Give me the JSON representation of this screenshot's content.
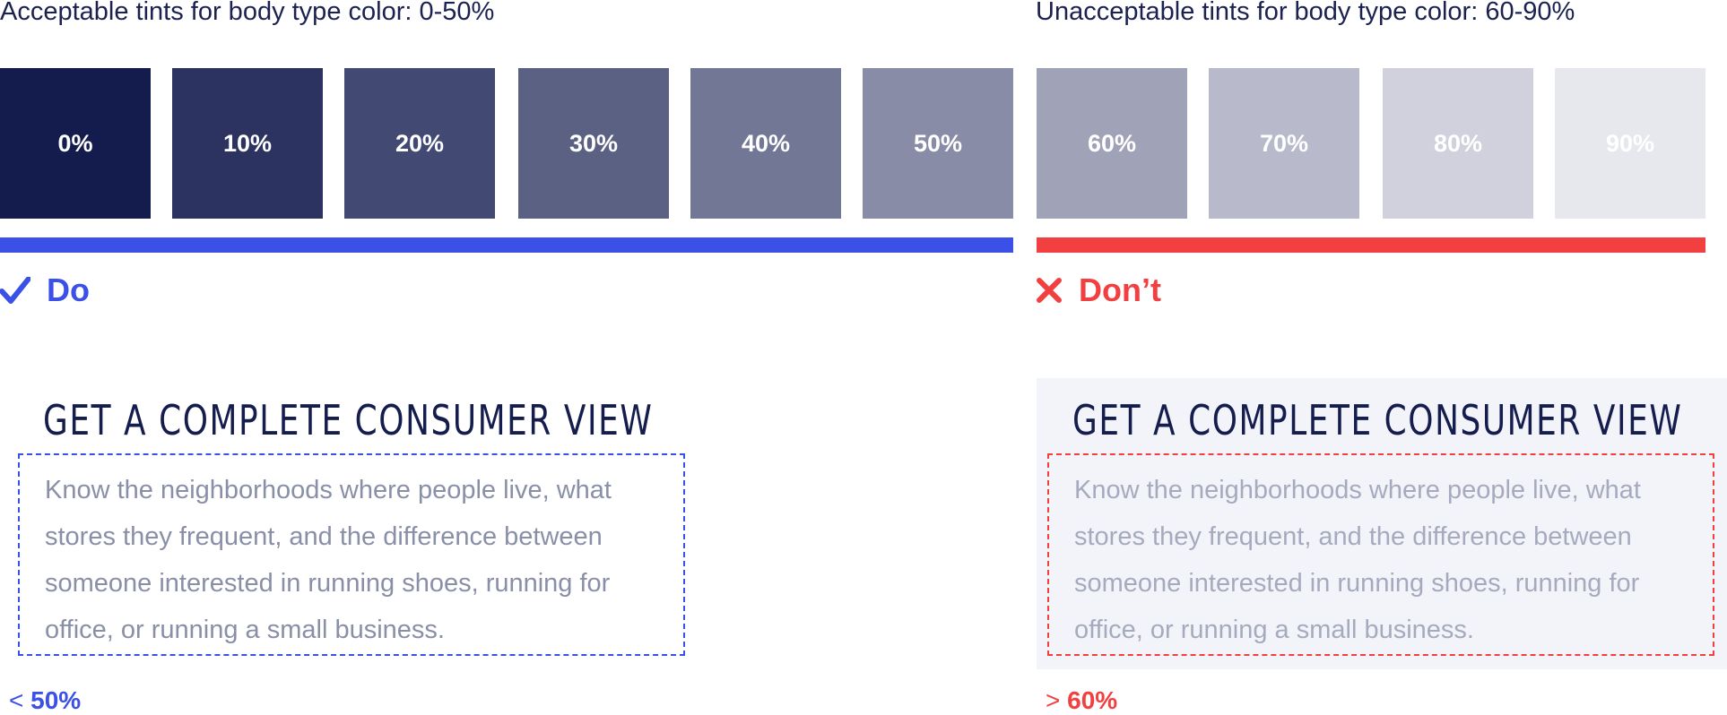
{
  "acceptable": {
    "heading": "Acceptable tints for body type color: 0-50%",
    "verdict": "Do",
    "verdict_icon": "check-icon",
    "accent": "#3a50e6",
    "card_title": "GET A COMPLETE CONSUMER VIEW",
    "body_text": "Know the neighborhoods where people live, what stores they frequent, and the difference between someone interested in running shoes, running for office, or running a small business.",
    "body_color": "#8a8fa8",
    "stat_op": "<",
    "stat_value": "50%"
  },
  "unacceptable": {
    "heading": "Unacceptable tints for body type color: 60-90%",
    "verdict": "Don’t",
    "verdict_icon": "x-icon",
    "accent": "#f24040",
    "card_title": "GET A COMPLETE CONSUMER VIEW",
    "body_text": "Know the neighborhoods where people live, what stores they frequent, and the difference between someone interested in running shoes, running for office, or running a small business.",
    "body_color": "#a6aabe",
    "card_bg": "#f3f4f9",
    "stat_op": ">",
    "stat_value": "60%"
  },
  "swatches": [
    {
      "label": "0%",
      "color": "#141c4d"
    },
    {
      "label": "10%",
      "color": "#2c3361"
    },
    {
      "label": "20%",
      "color": "#424972"
    },
    {
      "label": "30%",
      "color": "#5b6183"
    },
    {
      "label": "40%",
      "color": "#727795"
    },
    {
      "label": "50%",
      "color": "#898ca7"
    },
    {
      "label": "60%",
      "color": "#a0a3b8"
    },
    {
      "label": "70%",
      "color": "#b8bacb"
    },
    {
      "label": "80%",
      "color": "#d0d1dc"
    },
    {
      "label": "90%",
      "color": "#e7e8ee"
    }
  ]
}
